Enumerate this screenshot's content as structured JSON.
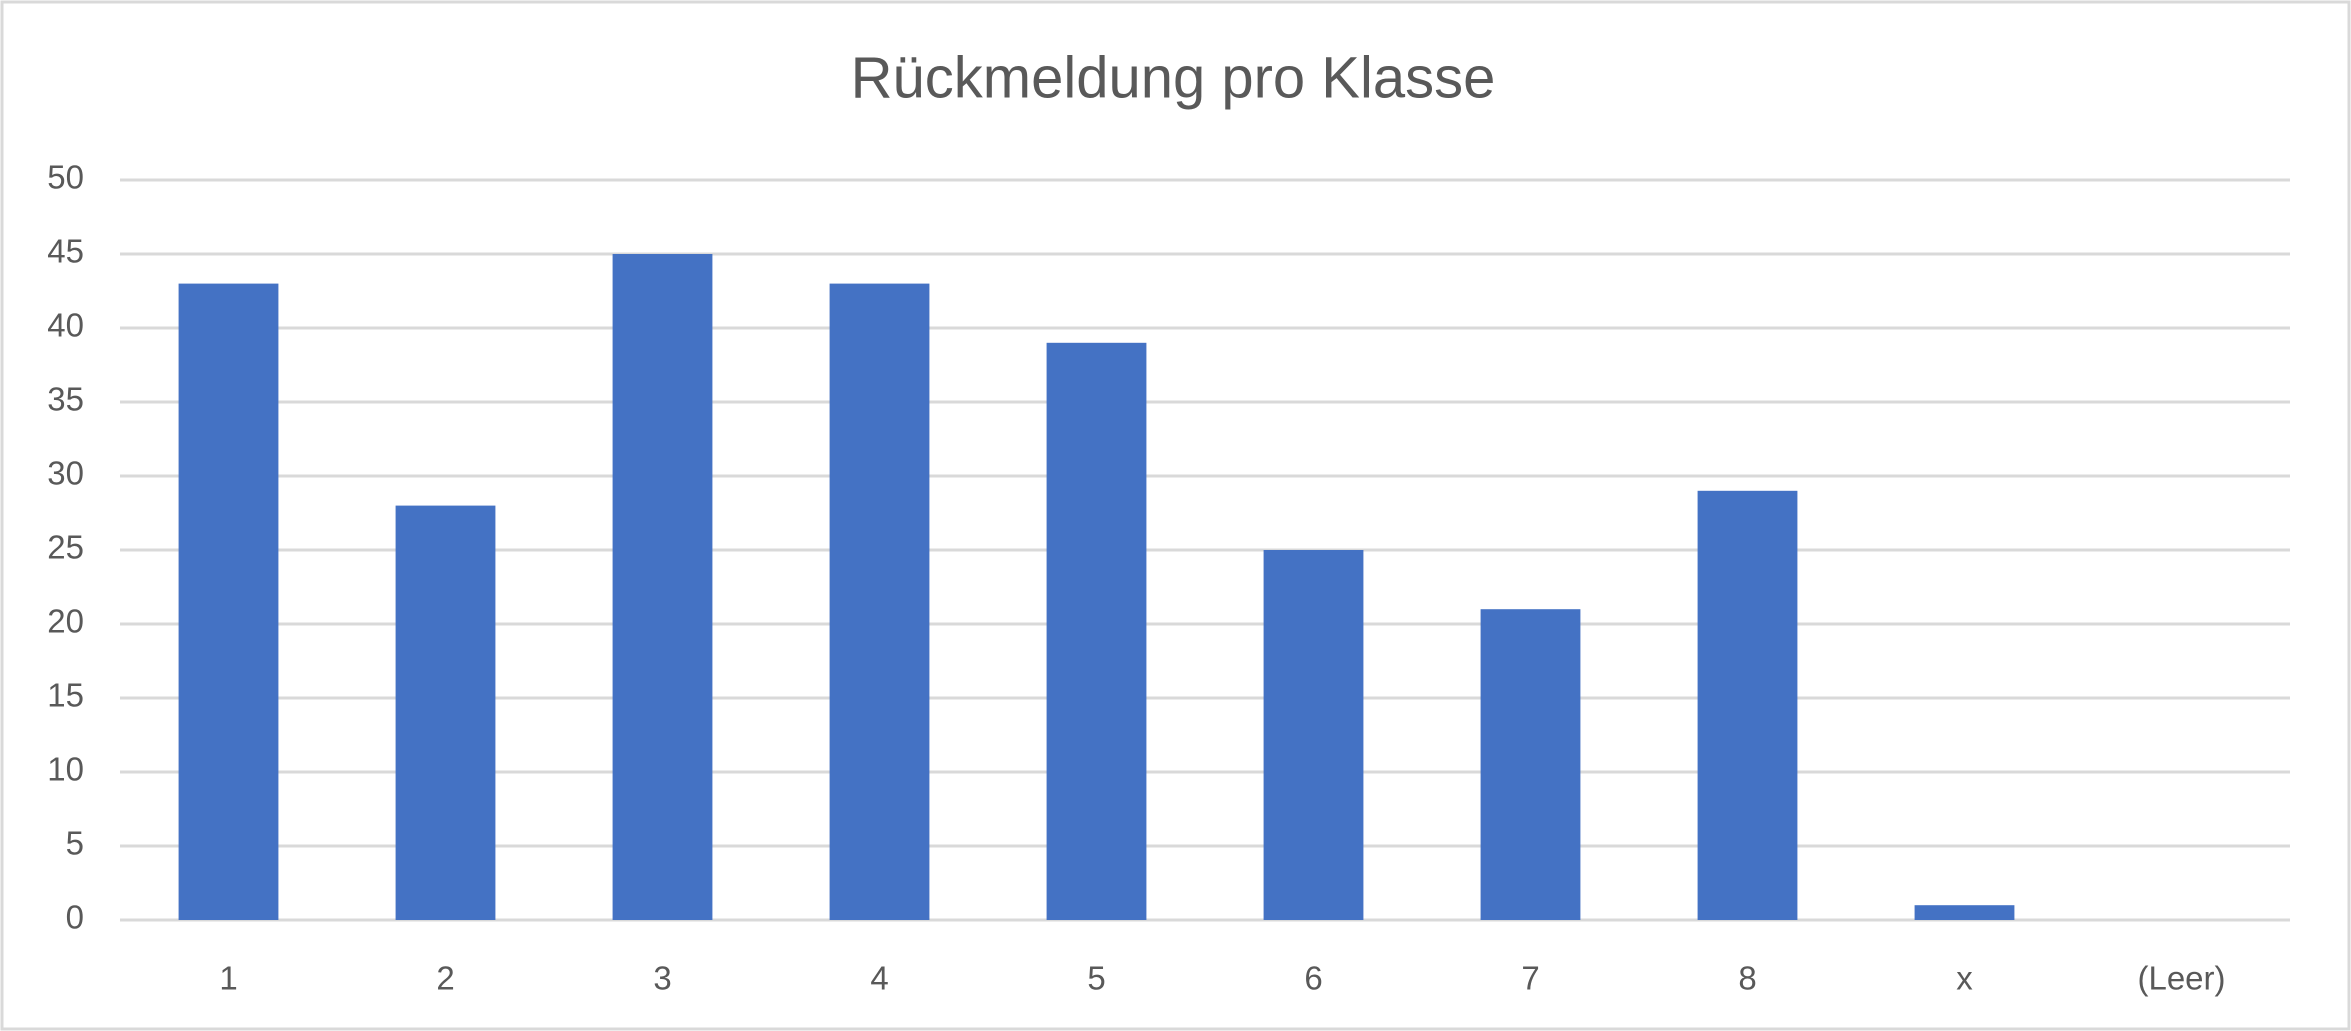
{
  "chart_data": {
    "type": "bar",
    "title": "Rückmeldung pro Klasse",
    "categories": [
      "1",
      "2",
      "3",
      "4",
      "5",
      "6",
      "7",
      "8",
      "x",
      "(Leer)"
    ],
    "values": [
      43,
      28,
      45,
      43,
      39,
      25,
      21,
      29,
      1,
      null
    ],
    "color": "#4472c4",
    "ylim": [
      0,
      50
    ],
    "yticks": [
      0,
      5,
      10,
      15,
      20,
      25,
      30,
      35,
      40,
      45,
      50
    ],
    "grid": true
  }
}
